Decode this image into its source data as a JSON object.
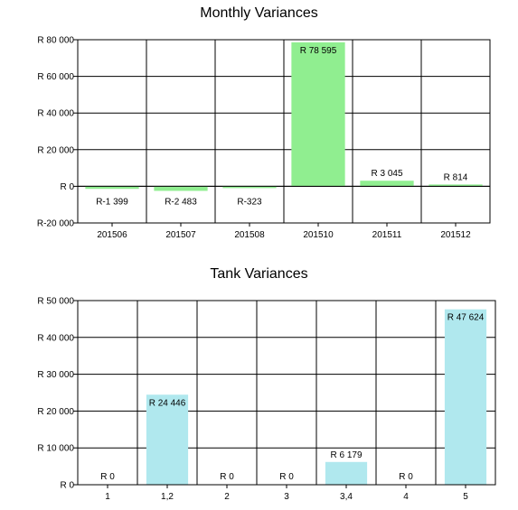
{
  "chart_data": [
    {
      "type": "bar",
      "title": "Monthly Variances",
      "categories": [
        "201506",
        "201507",
        "201508",
        "201510",
        "201511",
        "201512"
      ],
      "values": [
        -1399,
        -2483,
        -323,
        78595,
        3045,
        814
      ],
      "data_labels": [
        "R-1 399",
        "R-2 483",
        "R-323",
        "R 78 595",
        "R 3 045",
        "R 814"
      ],
      "y_ticks": [
        -20000,
        0,
        20000,
        40000,
        60000,
        80000
      ],
      "y_tick_labels": [
        "R-20 000",
        "R 0",
        "R 20 000",
        "R 40 000",
        "R 60 000",
        "R 80 000"
      ],
      "ylim": [
        -20000,
        80000
      ],
      "grid": true,
      "bar_color": "#90ee90",
      "xlabel": "",
      "ylabel": ""
    },
    {
      "type": "bar",
      "title": "Tank Variances",
      "categories": [
        "1",
        "1,2",
        "2",
        "3",
        "3,4",
        "4",
        "5"
      ],
      "values": [
        0,
        24446,
        0,
        0,
        6179,
        0,
        47624
      ],
      "data_labels": [
        "R 0",
        "R 24 446",
        "R 0",
        "R 0",
        "R 6 179",
        "R 0",
        "R 47 624"
      ],
      "y_ticks": [
        0,
        10000,
        20000,
        30000,
        40000,
        50000
      ],
      "y_tick_labels": [
        "R 0",
        "R 10 000",
        "R 20 000",
        "R 30 000",
        "R 40 000",
        "R 50 000"
      ],
      "ylim": [
        0,
        50000
      ],
      "grid": true,
      "bar_color": "#b0e8ee",
      "xlabel": "",
      "ylabel": ""
    }
  ]
}
